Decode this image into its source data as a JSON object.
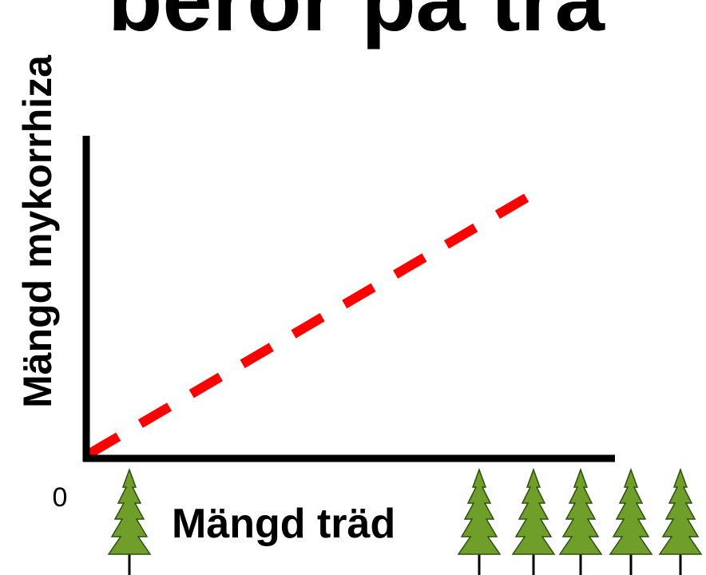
{
  "title": "beror på trä",
  "y_axis_label": "Mängd mykorrhiza",
  "x_axis_label": "Mängd träd",
  "origin_label": "0"
}
